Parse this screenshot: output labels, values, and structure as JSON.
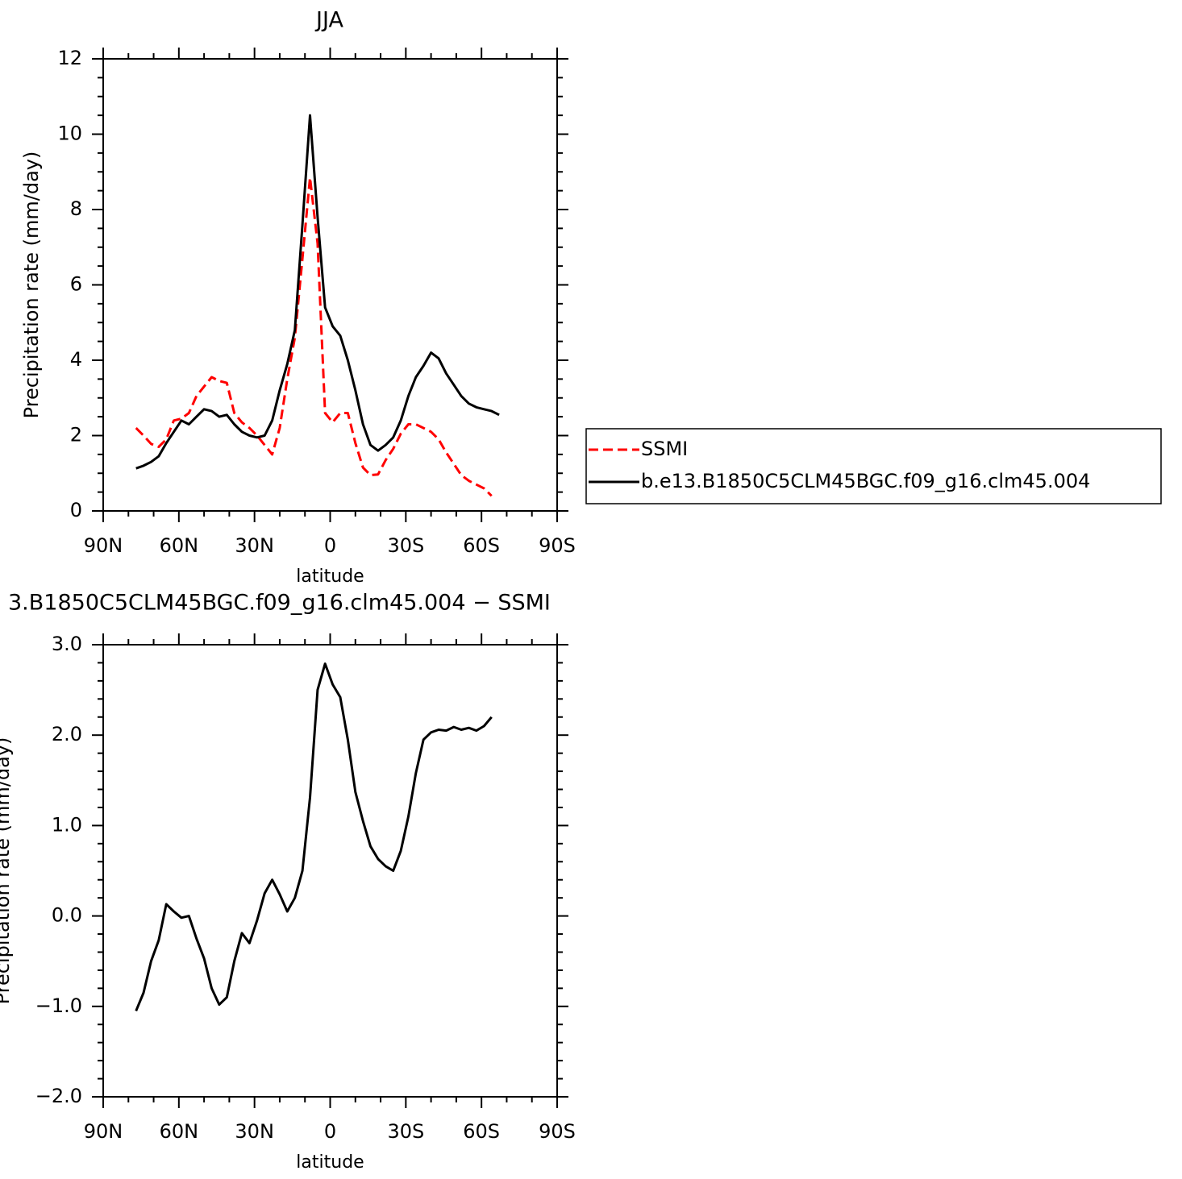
{
  "chart_data": [
    {
      "type": "line",
      "title": "JJA",
      "xlabel": "latitude",
      "ylabel": "Precipitation rate (mm/day)",
      "x": [
        77,
        74,
        71,
        68,
        65,
        62,
        59,
        56,
        53,
        50,
        47,
        44,
        41,
        38,
        35,
        32,
        29,
        26,
        23,
        20,
        17,
        14,
        11,
        8,
        5,
        2,
        -1,
        -4,
        -7,
        -10,
        -13,
        -16,
        -19,
        -22,
        -25,
        -28,
        -31,
        -34,
        -37,
        -40,
        -43,
        -46,
        -49,
        -52,
        -55,
        -58,
        -61,
        -64,
        -67
      ],
      "series": [
        {
          "name": "SSMI",
          "color": "#ff0000",
          "linestyle": "dashed",
          "values": [
            2.2,
            2.0,
            1.78,
            1.7,
            1.9,
            2.4,
            2.45,
            2.6,
            3.05,
            3.3,
            3.55,
            3.45,
            3.4,
            2.6,
            2.35,
            2.2,
            2.0,
            1.75,
            1.5,
            2.2,
            3.5,
            4.6,
            6.7,
            8.85,
            7.1,
            2.6,
            2.35,
            2.6,
            2.6,
            1.8,
            1.15,
            0.95,
            0.97,
            1.35,
            1.65,
            2.05,
            2.3,
            2.3,
            2.2,
            2.1,
            1.9,
            1.55,
            1.25,
            0.95,
            0.8,
            0.7,
            0.6,
            0.4,
            null
          ]
        },
        {
          "name": "b.e13.B1850C5CLM45BGC.f09_g16.clm45.004",
          "color": "#000000",
          "linestyle": "solid",
          "values": [
            1.13,
            1.2,
            1.3,
            1.45,
            1.8,
            2.1,
            2.4,
            2.3,
            2.5,
            2.7,
            2.65,
            2.5,
            2.55,
            2.3,
            2.1,
            2.0,
            1.95,
            2.0,
            2.4,
            3.2,
            3.9,
            4.8,
            7.6,
            10.5,
            7.8,
            5.4,
            4.9,
            4.65,
            4.0,
            3.2,
            2.3,
            1.75,
            1.6,
            1.75,
            1.95,
            2.4,
            3.05,
            3.55,
            3.85,
            4.2,
            4.05,
            3.65,
            3.35,
            3.05,
            2.85,
            2.75,
            2.7,
            2.65,
            2.55
          ]
        }
      ],
      "xlim": [
        90,
        -90
      ],
      "xticks": [
        {
          "value": 90,
          "label": "90N"
        },
        {
          "value": 60,
          "label": "60N"
        },
        {
          "value": 30,
          "label": "30N"
        },
        0,
        {
          "value": -30,
          "label": "30S"
        },
        {
          "value": -60,
          "label": "60S"
        },
        {
          "value": -90,
          "label": "90S"
        }
      ],
      "ylim": [
        0,
        12
      ],
      "yticks": [
        0,
        2,
        4,
        6,
        8,
        10,
        12
      ],
      "legend": "right"
    },
    {
      "type": "line",
      "title": "3.B1850C5CLM45BGC.f09_g16.clm45.004 − SSMI",
      "xlabel": "latitude",
      "ylabel": "Precipitation rate (mm/day)",
      "x": [
        77,
        74,
        71,
        68,
        65,
        62,
        59,
        56,
        53,
        50,
        47,
        44,
        41,
        38,
        35,
        32,
        29,
        26,
        23,
        20,
        17,
        14,
        11,
        8,
        5,
        2,
        -1,
        -4,
        -7,
        -10,
        -13,
        -16,
        -19,
        -22,
        -25,
        -28,
        -31,
        -34,
        -37,
        -40,
        -43,
        -46,
        -49,
        -52,
        -55,
        -58,
        -61,
        -64,
        -67
      ],
      "series": [
        {
          "color": "#000000",
          "linestyle": "solid",
          "values": [
            -1.05,
            -0.85,
            -0.5,
            -0.27,
            0.13,
            0.05,
            -0.02,
            0.0,
            -0.25,
            -0.47,
            -0.8,
            -0.98,
            -0.9,
            -0.5,
            -0.19,
            -0.3,
            -0.05,
            0.25,
            0.4,
            0.24,
            0.05,
            0.2,
            0.5,
            1.31,
            2.5,
            2.79,
            2.56,
            2.42,
            1.95,
            1.37,
            1.05,
            0.77,
            0.63,
            0.55,
            0.5,
            0.72,
            1.1,
            1.58,
            1.95,
            2.03,
            2.06,
            2.05,
            2.09,
            2.06,
            2.08,
            2.05,
            2.1,
            2.2,
            null
          ]
        }
      ],
      "xlim": [
        90,
        -90
      ],
      "xticks": [
        {
          "value": 90,
          "label": "90N"
        },
        {
          "value": 60,
          "label": "60N"
        },
        {
          "value": 30,
          "label": "30N"
        },
        0,
        {
          "value": -30,
          "label": "30S"
        },
        {
          "value": -60,
          "label": "60S"
        },
        {
          "value": -90,
          "label": "90S"
        }
      ],
      "ylim": [
        -2,
        3
      ],
      "yticks": [
        {
          "value": -2,
          "label": "−2.0"
        },
        {
          "value": -1,
          "label": "−1.0"
        },
        {
          "value": 0,
          "label": "0.0"
        },
        {
          "value": 1,
          "label": "1.0"
        },
        {
          "value": 2,
          "label": "2.0"
        },
        {
          "value": 3,
          "label": "3.0"
        }
      ]
    }
  ]
}
